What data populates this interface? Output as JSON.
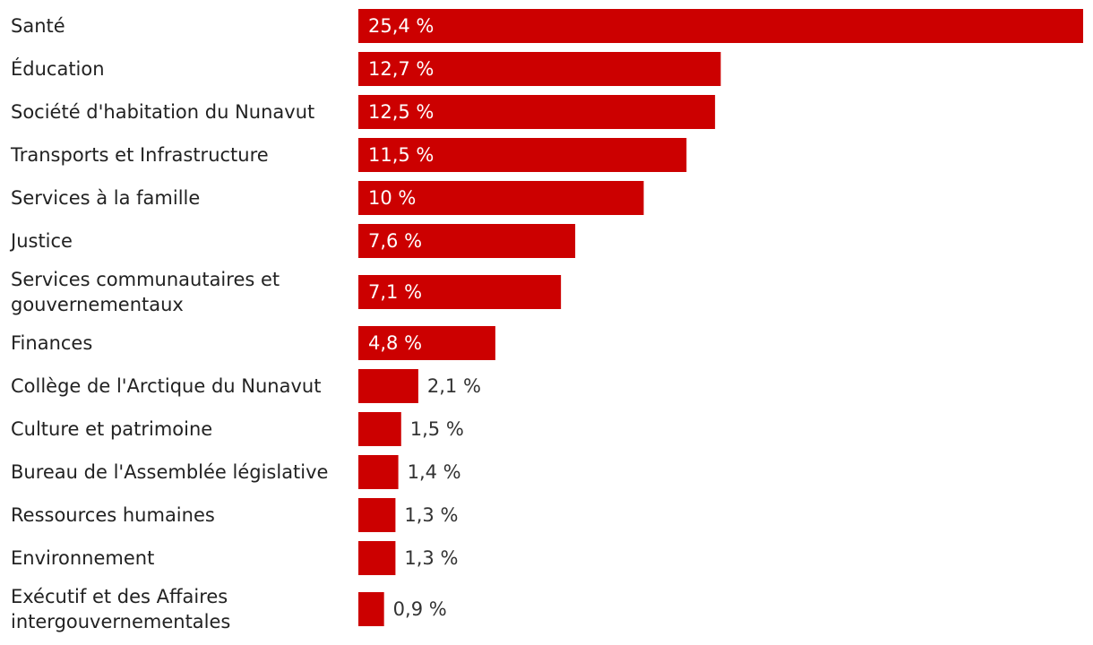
{
  "chart_data": {
    "type": "bar",
    "orientation": "horizontal",
    "bar_color": "#cc0000",
    "categories": [
      "Santé",
      "Éducation",
      "Société d'habitation du Nunavut",
      "Transports et Infrastructure",
      "Services à la famille",
      "Justice",
      "Services communautaires et gouvernementaux",
      "Finances",
      "Collège de l'Arctique du Nunavut",
      "Culture et patrimoine",
      "Bureau de l'Assemblée législative",
      "Ressources humaines",
      "Environnement",
      "Exécutif et des Affaires intergouvernementales"
    ],
    "category_lines": [
      [
        "Santé"
      ],
      [
        "Éducation"
      ],
      [
        "Société d'habitation du Nunavut"
      ],
      [
        "Transports et Infrastructure"
      ],
      [
        "Services à la famille"
      ],
      [
        "Justice"
      ],
      [
        "Services communautaires et",
        "gouvernementaux"
      ],
      [
        "Finances"
      ],
      [
        "Collège de l'Arctique du Nunavut"
      ],
      [
        "Culture et patrimoine"
      ],
      [
        "Bureau de l'Assemblée législative"
      ],
      [
        "Ressources humaines"
      ],
      [
        "Environnement"
      ],
      [
        "Exécutif et des Affaires",
        "intergouvernementales"
      ]
    ],
    "values": [
      25.4,
      12.7,
      12.5,
      11.5,
      10,
      7.6,
      7.1,
      4.8,
      2.1,
      1.5,
      1.4,
      1.3,
      1.3,
      0.9
    ],
    "value_labels": [
      "25,4 %",
      "12,7 %",
      "12,5 %",
      "11,5 %",
      "10 %",
      "7,6 %",
      "7,1 %",
      "4,8 %",
      "2,1 %",
      "1,5 %",
      "1,4 %",
      "1,3 %",
      "1,3 %",
      "0,9 %"
    ],
    "xlim": [
      0,
      25.4
    ],
    "title": "",
    "xlabel": "",
    "ylabel": ""
  }
}
